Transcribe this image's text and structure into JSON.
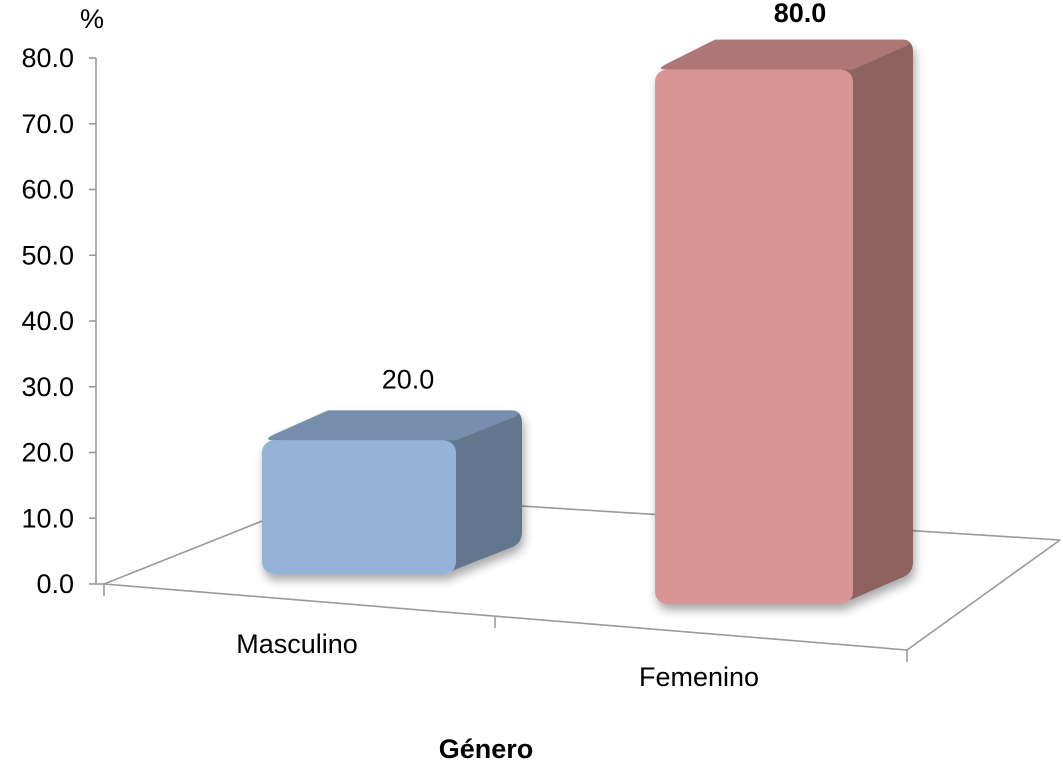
{
  "chart_data": {
    "type": "bar",
    "style": "3d-column",
    "categories": [
      "Masculino",
      "Femenino"
    ],
    "series": [
      {
        "values": [
          20.0,
          80.0
        ],
        "colors": [
          "#95B3D7",
          "#D99594"
        ],
        "data_labels": [
          "20.0",
          "80.0"
        ]
      }
    ],
    "ylabel": "%",
    "xlabel": "Género",
    "ylim": [
      0,
      80
    ],
    "yticks": [
      "0.0",
      "10.0",
      "20.0",
      "30.0",
      "40.0",
      "50.0",
      "60.0",
      "70.0",
      "80.0"
    ],
    "grid": false,
    "legend": "none"
  }
}
